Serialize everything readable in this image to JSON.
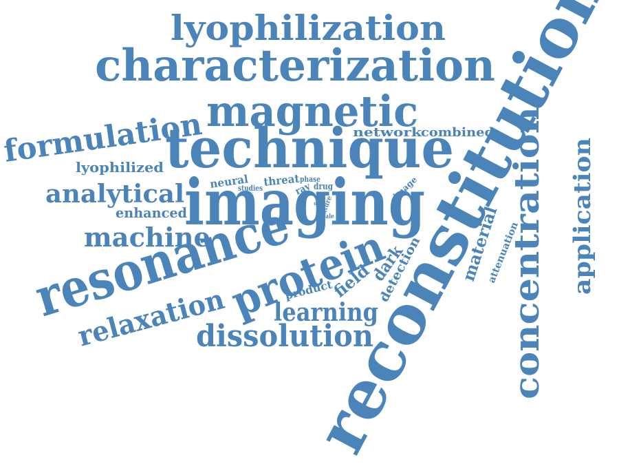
{
  "cloud": {
    "color": "#4a84b9",
    "words": [
      "reconstitution",
      "imaging",
      "technique",
      "resonance",
      "characterization",
      "protein",
      "magnetic",
      "lyophilization",
      "concentration",
      "formulation",
      "dissolution",
      "relaxation",
      "application",
      "analytical",
      "machine",
      "learning",
      "material",
      "dark",
      "field",
      "detection",
      "enhanced",
      "lyophilized",
      "network",
      "combined",
      "product",
      "attenuation",
      "threat",
      "neural",
      "image",
      "studies",
      "phase",
      "ray",
      "drug",
      "texture",
      "scale",
      "uss"
    ]
  }
}
